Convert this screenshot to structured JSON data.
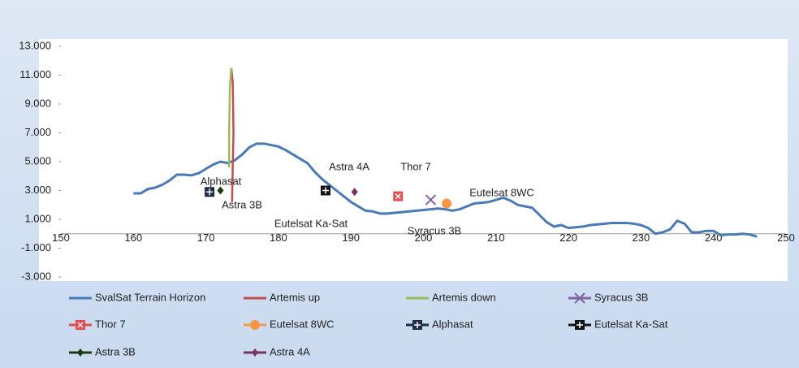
{
  "chart_data": {
    "type": "line",
    "xlim": [
      150,
      250
    ],
    "xticks": [
      150,
      160,
      170,
      180,
      190,
      200,
      210,
      220,
      230,
      240,
      250
    ],
    "ylim": [
      -3,
      13
    ],
    "yticks": [
      {
        "value": -3,
        "label": "-3.000"
      },
      {
        "value": -1,
        "label": "-1.000"
      },
      {
        "value": 1,
        "label": "1.000"
      },
      {
        "value": 3,
        "label": "3.000"
      },
      {
        "value": 5,
        "label": "5.000"
      },
      {
        "value": 7,
        "label": "7.000"
      },
      {
        "value": 9,
        "label": "9.000"
      },
      {
        "value": 11,
        "label": "11.000"
      },
      {
        "value": 13,
        "label": "13.000"
      }
    ],
    "grid": false,
    "series": [
      {
        "name": "SvalSat Terrain Horizon",
        "color": "#4a7ab5",
        "marker": "none",
        "x": [
          160,
          161,
          162,
          163,
          164,
          165,
          166,
          167,
          168,
          169,
          170,
          171,
          172,
          173,
          174,
          175,
          176,
          177,
          178,
          179,
          180,
          181,
          182,
          183,
          184,
          185,
          186,
          187,
          188,
          189,
          190,
          191,
          192,
          193,
          194,
          195,
          196,
          197,
          198,
          199,
          200,
          201,
          202,
          203,
          204,
          205,
          206,
          207,
          208,
          209,
          210,
          211,
          212,
          213,
          214,
          215,
          216,
          217,
          218,
          219,
          220,
          221,
          222,
          223,
          224,
          225,
          226,
          227,
          228,
          229,
          230,
          231,
          232,
          233,
          234,
          235,
          236,
          237,
          238,
          239,
          240,
          241,
          242,
          243,
          244,
          245,
          246
        ],
        "values": [
          2.8,
          2.8,
          3.1,
          3.2,
          3.4,
          3.7,
          4.1,
          4.1,
          4.05,
          4.2,
          4.5,
          4.8,
          5.0,
          4.9,
          5.1,
          5.5,
          6.0,
          6.25,
          6.25,
          6.15,
          6.05,
          5.8,
          5.5,
          5.2,
          4.9,
          4.3,
          3.8,
          3.4,
          3.0,
          2.6,
          2.2,
          1.9,
          1.6,
          1.55,
          1.4,
          1.4,
          1.45,
          1.5,
          1.55,
          1.6,
          1.65,
          1.7,
          1.75,
          1.7,
          1.6,
          1.7,
          1.9,
          2.1,
          2.15,
          2.2,
          2.35,
          2.5,
          2.3,
          2.0,
          1.9,
          1.8,
          1.3,
          0.8,
          0.5,
          0.6,
          0.4,
          0.45,
          0.5,
          0.6,
          0.65,
          0.7,
          0.75,
          0.75,
          0.75,
          0.7,
          0.6,
          0.4,
          0.0,
          0.1,
          0.3,
          0.9,
          0.7,
          0.1,
          0.1,
          0.2,
          0.2,
          -0.1,
          -0.05,
          -0.05,
          0.0,
          -0.05,
          -0.2
        ]
      },
      {
        "name": "Artemis up",
        "color": "#c0504d",
        "marker": "none",
        "x": [
          173.6,
          173.8,
          173.7,
          173.5
        ],
        "values": [
          2.2,
          7,
          10.5,
          11.5
        ]
      },
      {
        "name": "Artemis down",
        "color": "#9bbb59",
        "marker": "none",
        "x": [
          173.5,
          173.3,
          173.2,
          173.2
        ],
        "values": [
          11.5,
          10,
          7,
          4.6
        ]
      },
      {
        "name": "Syracus 3B",
        "color": "#8064a2",
        "marker": "x",
        "x": [
          201
        ],
        "values": [
          2.35
        ]
      },
      {
        "name": "Thor 7",
        "color": "#e05050",
        "marker": "square-x",
        "x": [
          196.5
        ],
        "values": [
          2.6
        ]
      },
      {
        "name": "Eutelsat 8WC",
        "color": "#f79646",
        "marker": "circle",
        "x": [
          203.2
        ],
        "values": [
          2.1
        ]
      },
      {
        "name": "Alphasat",
        "color": "#1f2d4a",
        "marker": "square-plus",
        "x": [
          170.5
        ],
        "values": [
          2.9
        ]
      },
      {
        "name": "Eutelsat Ka-Sat",
        "color": "#111111",
        "marker": "square-plus",
        "x": [
          186.5
        ],
        "values": [
          3.0
        ]
      },
      {
        "name": "Astra 3B",
        "color": "#1a3a10",
        "marker": "diamond",
        "x": [
          172
        ],
        "values": [
          3.0
        ]
      },
      {
        "name": "Astra 4A",
        "color": "#7a3060",
        "marker": "diamond",
        "x": [
          190.5
        ],
        "values": [
          2.9
        ]
      }
    ],
    "annotations": [
      "Alphasat",
      "Astra 3B",
      "Astra 4A",
      "Thor 7",
      "Eutelsat 8WC",
      "Eutelsat Ka-Sat",
      "Syracus 3B"
    ]
  }
}
